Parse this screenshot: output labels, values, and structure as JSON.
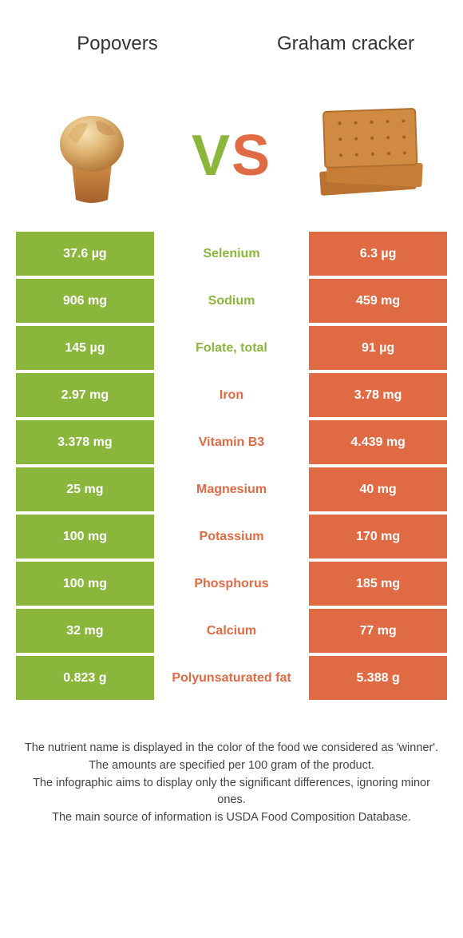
{
  "colors": {
    "left": "#8bb63c",
    "right": "#e06a44",
    "left_text": "#8bb63c",
    "right_text": "#e06a44"
  },
  "header": {
    "left_title": "Popovers",
    "right_title": "Graham cracker"
  },
  "vs": {
    "v": "V",
    "s": "S"
  },
  "rows": [
    {
      "left": "37.6 µg",
      "mid": "Selenium",
      "right": "6.3 µg",
      "winner": "left"
    },
    {
      "left": "906 mg",
      "mid": "Sodium",
      "right": "459 mg",
      "winner": "left"
    },
    {
      "left": "145 µg",
      "mid": "Folate, total",
      "right": "91 µg",
      "winner": "left"
    },
    {
      "left": "2.97 mg",
      "mid": "Iron",
      "right": "3.78 mg",
      "winner": "right"
    },
    {
      "left": "3.378 mg",
      "mid": "Vitamin B3",
      "right": "4.439 mg",
      "winner": "right"
    },
    {
      "left": "25 mg",
      "mid": "Magnesium",
      "right": "40 mg",
      "winner": "right"
    },
    {
      "left": "100 mg",
      "mid": "Potassium",
      "right": "170 mg",
      "winner": "right"
    },
    {
      "left": "100 mg",
      "mid": "Phosphorus",
      "right": "185 mg",
      "winner": "right"
    },
    {
      "left": "32 mg",
      "mid": "Calcium",
      "right": "77 mg",
      "winner": "right"
    },
    {
      "left": "0.823 g",
      "mid": "Polyunsaturated fat",
      "right": "5.388 g",
      "winner": "right"
    }
  ],
  "footnotes": {
    "line1": "The nutrient name is displayed in the color of the food we considered as 'winner'.",
    "line2": "The amounts are specified per 100 gram of the product.",
    "line3": "The infographic aims to display only the significant differences, ignoring minor ones.",
    "line4": "The main source of information is USDA Food Composition Database."
  }
}
